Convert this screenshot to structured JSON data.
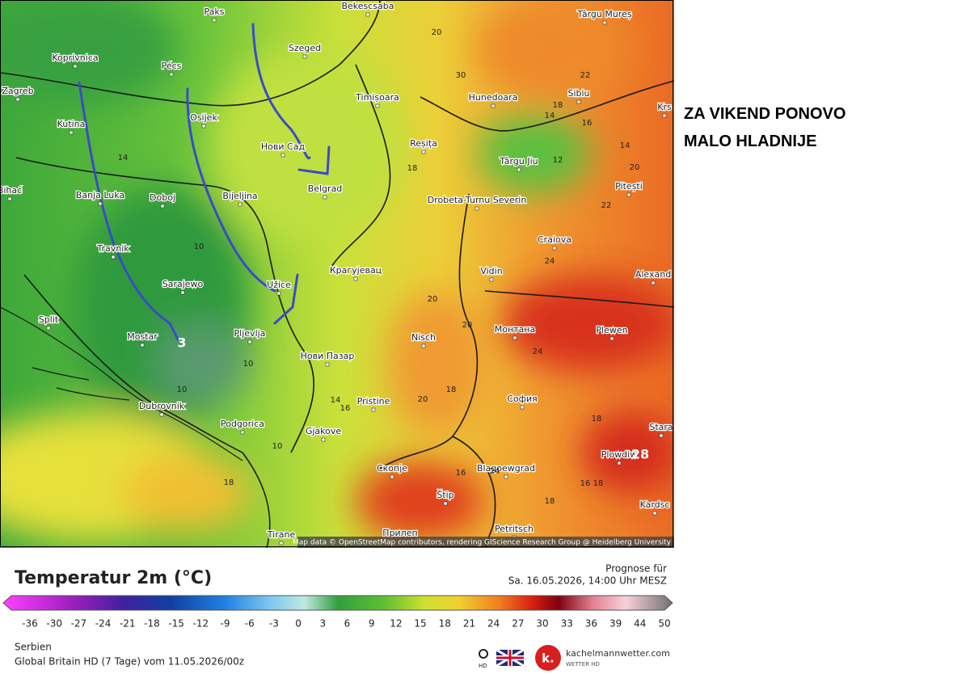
{
  "map": {
    "cities": [
      "Bekescsaba",
      "Paks",
      "Târgu Mureș",
      "Koprivnica",
      "Pécs",
      "Szeged",
      "Zagreb",
      "Osijek",
      "Timișoara",
      "Hunedoara",
      "Sibiu",
      "Kutina",
      "Нови Сад",
      "Reșița",
      "Târgu Jiu",
      "Bihać",
      "Banja Luka",
      "Doboj",
      "Bijeljina",
      "Belgrad",
      "Drobeta-Turnu Severin",
      "Pitești",
      "Travnik",
      "Craiova",
      "Крагујевац",
      "Sarajewo",
      "Užice",
      "Vidin",
      "Alexand",
      "Split",
      "Mostar",
      "Pljevlja",
      "Nisch",
      "Монтана",
      "Plewen",
      "Нови Пазар",
      "Pristine",
      "София",
      "Dubrovnik",
      "Podgorica",
      "Gjakove",
      "Stara",
      "Plowdiw",
      "Скопје",
      "Blagoewgrad",
      "Štip",
      "Kardsc",
      "Petritsch",
      "Tirane",
      "Прилеп",
      "Krs"
    ],
    "contour_labels": [
      "20",
      "30",
      "22",
      "18",
      "14",
      "16",
      "12",
      "14",
      "20",
      "18",
      "22",
      "14",
      "24",
      "10",
      "20",
      "20",
      "24",
      "18",
      "10",
      "10",
      "16",
      "14",
      "20",
      "18",
      "18",
      "16",
      "18",
      "24",
      "18",
      "16",
      "10",
      "3",
      "28"
    ],
    "attribution": "Map data © OpenStreetMap contributors, rendering GIScience Research Group @ Heidelberg University"
  },
  "annotation": {
    "lines": [
      "ZA VIKEND PONOVO",
      "MALO HLADNIJE"
    ]
  },
  "legend": {
    "title": "Temperatur 2m (°C)",
    "forecast_label": "Prognose für",
    "forecast_time": "Sa. 16.05.2026, 14:00 Uhr MESZ",
    "scale": [
      -36,
      -30,
      -27,
      -24,
      -21,
      -18,
      -15,
      -12,
      -9,
      -6,
      -3,
      0,
      3,
      6,
      9,
      12,
      15,
      18,
      21,
      24,
      27,
      30,
      33,
      36,
      39,
      44,
      50
    ]
  },
  "footer": {
    "region": "Serbien",
    "model": "Global Britain HD (7 Tage) vom 11.05.2026/00z",
    "hd": "HD",
    "logo_letter": "k.",
    "brand": "kachelmannwetter.com",
    "brand_sub": "WETTER HD"
  }
}
